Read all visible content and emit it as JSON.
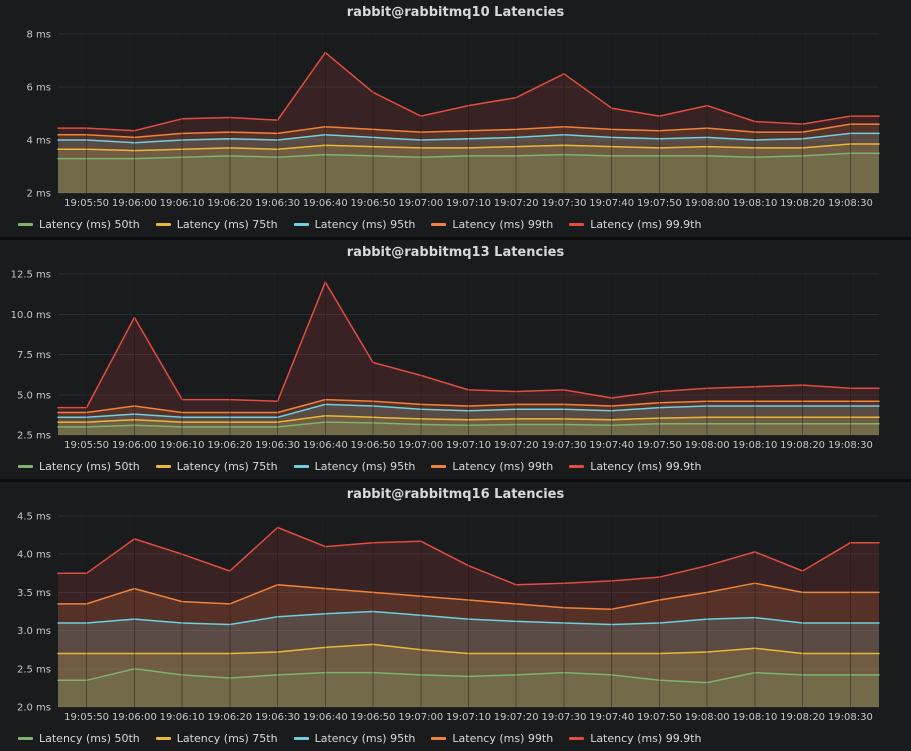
{
  "chart_data": [
    {
      "type": "area",
      "title": "rabbit@rabbitmq10 Latencies",
      "categories": [
        "19:05:50",
        "19:06:00",
        "19:06:10",
        "19:06:20",
        "19:06:30",
        "19:06:40",
        "19:06:50",
        "19:07:00",
        "19:07:10",
        "19:07:20",
        "19:07:30",
        "19:07:40",
        "19:07:50",
        "19:08:00",
        "19:08:10",
        "19:08:20",
        "19:08:30"
      ],
      "ylim": [
        2,
        8
      ],
      "ytick_values": [
        2,
        4,
        6,
        8
      ],
      "ytick_labels": [
        "2 ms",
        "4 ms",
        "6 ms",
        "8 ms"
      ],
      "grid": true,
      "legend_position": "bottom",
      "series": [
        {
          "name": "Latency (ms) 50th",
          "color": "#7EB26D",
          "values": [
            3.3,
            3.3,
            3.35,
            3.4,
            3.35,
            3.45,
            3.4,
            3.35,
            3.4,
            3.4,
            3.45,
            3.4,
            3.4,
            3.4,
            3.35,
            3.4,
            3.5
          ]
        },
        {
          "name": "Latency (ms) 75th",
          "color": "#EAB839",
          "values": [
            3.65,
            3.6,
            3.65,
            3.7,
            3.65,
            3.8,
            3.75,
            3.7,
            3.7,
            3.75,
            3.8,
            3.75,
            3.7,
            3.75,
            3.7,
            3.7,
            3.85
          ]
        },
        {
          "name": "Latency (ms) 95th",
          "color": "#6ED0E0",
          "values": [
            4.0,
            3.9,
            4.0,
            4.05,
            4.0,
            4.2,
            4.1,
            4.0,
            4.05,
            4.1,
            4.2,
            4.1,
            4.05,
            4.1,
            4.0,
            4.05,
            4.25
          ]
        },
        {
          "name": "Latency (ms) 99th",
          "color": "#EF843C",
          "values": [
            4.2,
            4.1,
            4.25,
            4.3,
            4.25,
            4.5,
            4.4,
            4.3,
            4.35,
            4.4,
            4.5,
            4.4,
            4.35,
            4.45,
            4.3,
            4.3,
            4.6
          ]
        },
        {
          "name": "Latency (ms) 99.9th",
          "color": "#E24D42",
          "values": [
            4.45,
            4.35,
            4.8,
            4.85,
            4.75,
            7.3,
            5.8,
            4.9,
            5.3,
            5.6,
            6.5,
            5.2,
            4.9,
            5.3,
            4.7,
            4.6,
            4.9
          ]
        }
      ]
    },
    {
      "type": "area",
      "title": "rabbit@rabbitmq13 Latencies",
      "categories": [
        "19:05:50",
        "19:06:00",
        "19:06:10",
        "19:06:20",
        "19:06:30",
        "19:06:40",
        "19:06:50",
        "19:07:00",
        "19:07:10",
        "19:07:20",
        "19:07:30",
        "19:07:40",
        "19:07:50",
        "19:08:00",
        "19:08:10",
        "19:08:20",
        "19:08:30"
      ],
      "ylim": [
        2.5,
        12.5
      ],
      "ytick_values": [
        2.5,
        5.0,
        7.5,
        10.0,
        12.5
      ],
      "ytick_labels": [
        "2.5 ms",
        "5.0 ms",
        "7.5 ms",
        "10.0 ms",
        "12.5 ms"
      ],
      "grid": true,
      "legend_position": "bottom",
      "series": [
        {
          "name": "Latency (ms) 50th",
          "color": "#7EB26D",
          "values": [
            3.0,
            3.1,
            3.0,
            3.0,
            3.0,
            3.3,
            3.25,
            3.15,
            3.1,
            3.15,
            3.15,
            3.1,
            3.2,
            3.2,
            3.2,
            3.2,
            3.2
          ]
        },
        {
          "name": "Latency (ms) 75th",
          "color": "#EAB839",
          "values": [
            3.3,
            3.45,
            3.3,
            3.3,
            3.3,
            3.7,
            3.6,
            3.5,
            3.45,
            3.5,
            3.5,
            3.45,
            3.55,
            3.6,
            3.6,
            3.6,
            3.6
          ]
        },
        {
          "name": "Latency (ms) 95th",
          "color": "#6ED0E0",
          "values": [
            3.6,
            3.8,
            3.6,
            3.6,
            3.6,
            4.4,
            4.3,
            4.1,
            4.0,
            4.1,
            4.1,
            4.0,
            4.2,
            4.3,
            4.3,
            4.3,
            4.3
          ]
        },
        {
          "name": "Latency (ms) 99th",
          "color": "#EF843C",
          "values": [
            3.9,
            4.3,
            3.9,
            3.9,
            3.9,
            4.7,
            4.6,
            4.4,
            4.3,
            4.4,
            4.4,
            4.3,
            4.5,
            4.6,
            4.6,
            4.6,
            4.6
          ]
        },
        {
          "name": "Latency (ms) 99.9th",
          "color": "#E24D42",
          "values": [
            4.2,
            9.8,
            4.7,
            4.7,
            4.6,
            12.0,
            7.0,
            6.2,
            5.3,
            5.2,
            5.3,
            4.8,
            5.2,
            5.4,
            5.5,
            5.6,
            5.4
          ]
        }
      ]
    },
    {
      "type": "area",
      "title": "rabbit@rabbitmq16 Latencies",
      "categories": [
        "19:05:50",
        "19:06:00",
        "19:06:10",
        "19:06:20",
        "19:06:30",
        "19:06:40",
        "19:06:50",
        "19:07:00",
        "19:07:10",
        "19:07:20",
        "19:07:30",
        "19:07:40",
        "19:07:50",
        "19:08:00",
        "19:08:10",
        "19:08:20",
        "19:08:30"
      ],
      "ylim": [
        2.0,
        4.5
      ],
      "ytick_values": [
        2.0,
        2.5,
        3.0,
        3.5,
        4.0,
        4.5
      ],
      "ytick_labels": [
        "2.0 ms",
        "2.5 ms",
        "3.0 ms",
        "3.5 ms",
        "4.0 ms",
        "4.5 ms"
      ],
      "grid": true,
      "legend_position": "bottom",
      "series": [
        {
          "name": "Latency (ms) 50th",
          "color": "#7EB26D",
          "values": [
            2.35,
            2.5,
            2.42,
            2.38,
            2.42,
            2.45,
            2.45,
            2.42,
            2.4,
            2.42,
            2.45,
            2.42,
            2.35,
            2.32,
            2.45,
            2.42,
            2.42
          ]
        },
        {
          "name": "Latency (ms) 75th",
          "color": "#EAB839",
          "values": [
            2.7,
            2.7,
            2.7,
            2.7,
            2.72,
            2.78,
            2.82,
            2.75,
            2.7,
            2.7,
            2.7,
            2.7,
            2.7,
            2.72,
            2.77,
            2.7,
            2.7
          ]
        },
        {
          "name": "Latency (ms) 95th",
          "color": "#6ED0E0",
          "values": [
            3.1,
            3.15,
            3.1,
            3.08,
            3.18,
            3.22,
            3.25,
            3.2,
            3.15,
            3.12,
            3.1,
            3.08,
            3.1,
            3.15,
            3.17,
            3.1,
            3.1
          ]
        },
        {
          "name": "Latency (ms) 99th",
          "color": "#EF843C",
          "values": [
            3.35,
            3.55,
            3.38,
            3.35,
            3.6,
            3.55,
            3.5,
            3.45,
            3.4,
            3.35,
            3.3,
            3.28,
            3.4,
            3.5,
            3.62,
            3.5,
            3.5
          ]
        },
        {
          "name": "Latency (ms) 99.9th",
          "color": "#E24D42",
          "values": [
            3.75,
            4.2,
            4.0,
            3.78,
            4.35,
            4.1,
            4.15,
            4.17,
            3.85,
            3.6,
            3.62,
            3.65,
            3.7,
            3.85,
            4.03,
            3.78,
            4.15
          ]
        }
      ]
    }
  ]
}
